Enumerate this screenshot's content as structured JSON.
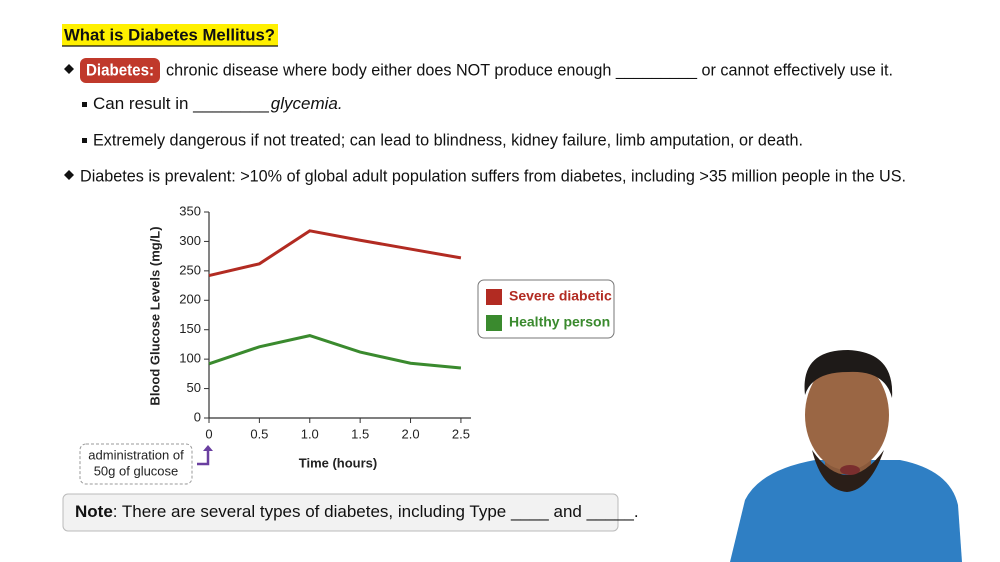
{
  "title": "What is Diabetes Mellitus?",
  "bullets": [
    {
      "label": "Diabetes:",
      "text": "chronic disease where body either does NOT produce enough _________ or cannot effectively use it.",
      "sub": [
        {
          "text": "Can result in ________",
          "italic": "glycemia."
        },
        {
          "text": "Extremely dangerous if not treated; can lead to blindness, kidney failure, limb amputation, or death."
        }
      ]
    },
    {
      "text": "Diabetes is prevalent: >10% of global adult population suffers from diabetes, including >35 million people in the US."
    }
  ],
  "chart_data": {
    "type": "line",
    "y_label": "Blood Glucose Levels (mg/L)",
    "x_label": "Time (hours)",
    "x": [
      0,
      0.5,
      1,
      1.5,
      2,
      2.5
    ],
    "xlim": [
      0,
      2.6
    ],
    "xticks": [
      0,
      0.5,
      {
        "value": 1,
        "label": "1.0"
      },
      1.5,
      {
        "value": 2,
        "label": "2.0"
      },
      2.5
    ],
    "ylim": [
      0,
      350
    ],
    "yticks": [
      0,
      50,
      100,
      150,
      200,
      250,
      300,
      350
    ],
    "series": [
      {
        "name": "Severe diabetic",
        "color": "#b22b22",
        "values": [
          242,
          262,
          318,
          302,
          287,
          272
        ]
      },
      {
        "name": "Healthy person",
        "color": "#3a8a2e",
        "values": [
          92,
          121,
          140,
          112,
          93,
          85
        ]
      }
    ]
  },
  "annotation_lines": [
    "administration of",
    "50g of glucose"
  ],
  "note": {
    "label": "Note",
    "text": ": There are several types of diabetes, including Type ____ and _____."
  }
}
